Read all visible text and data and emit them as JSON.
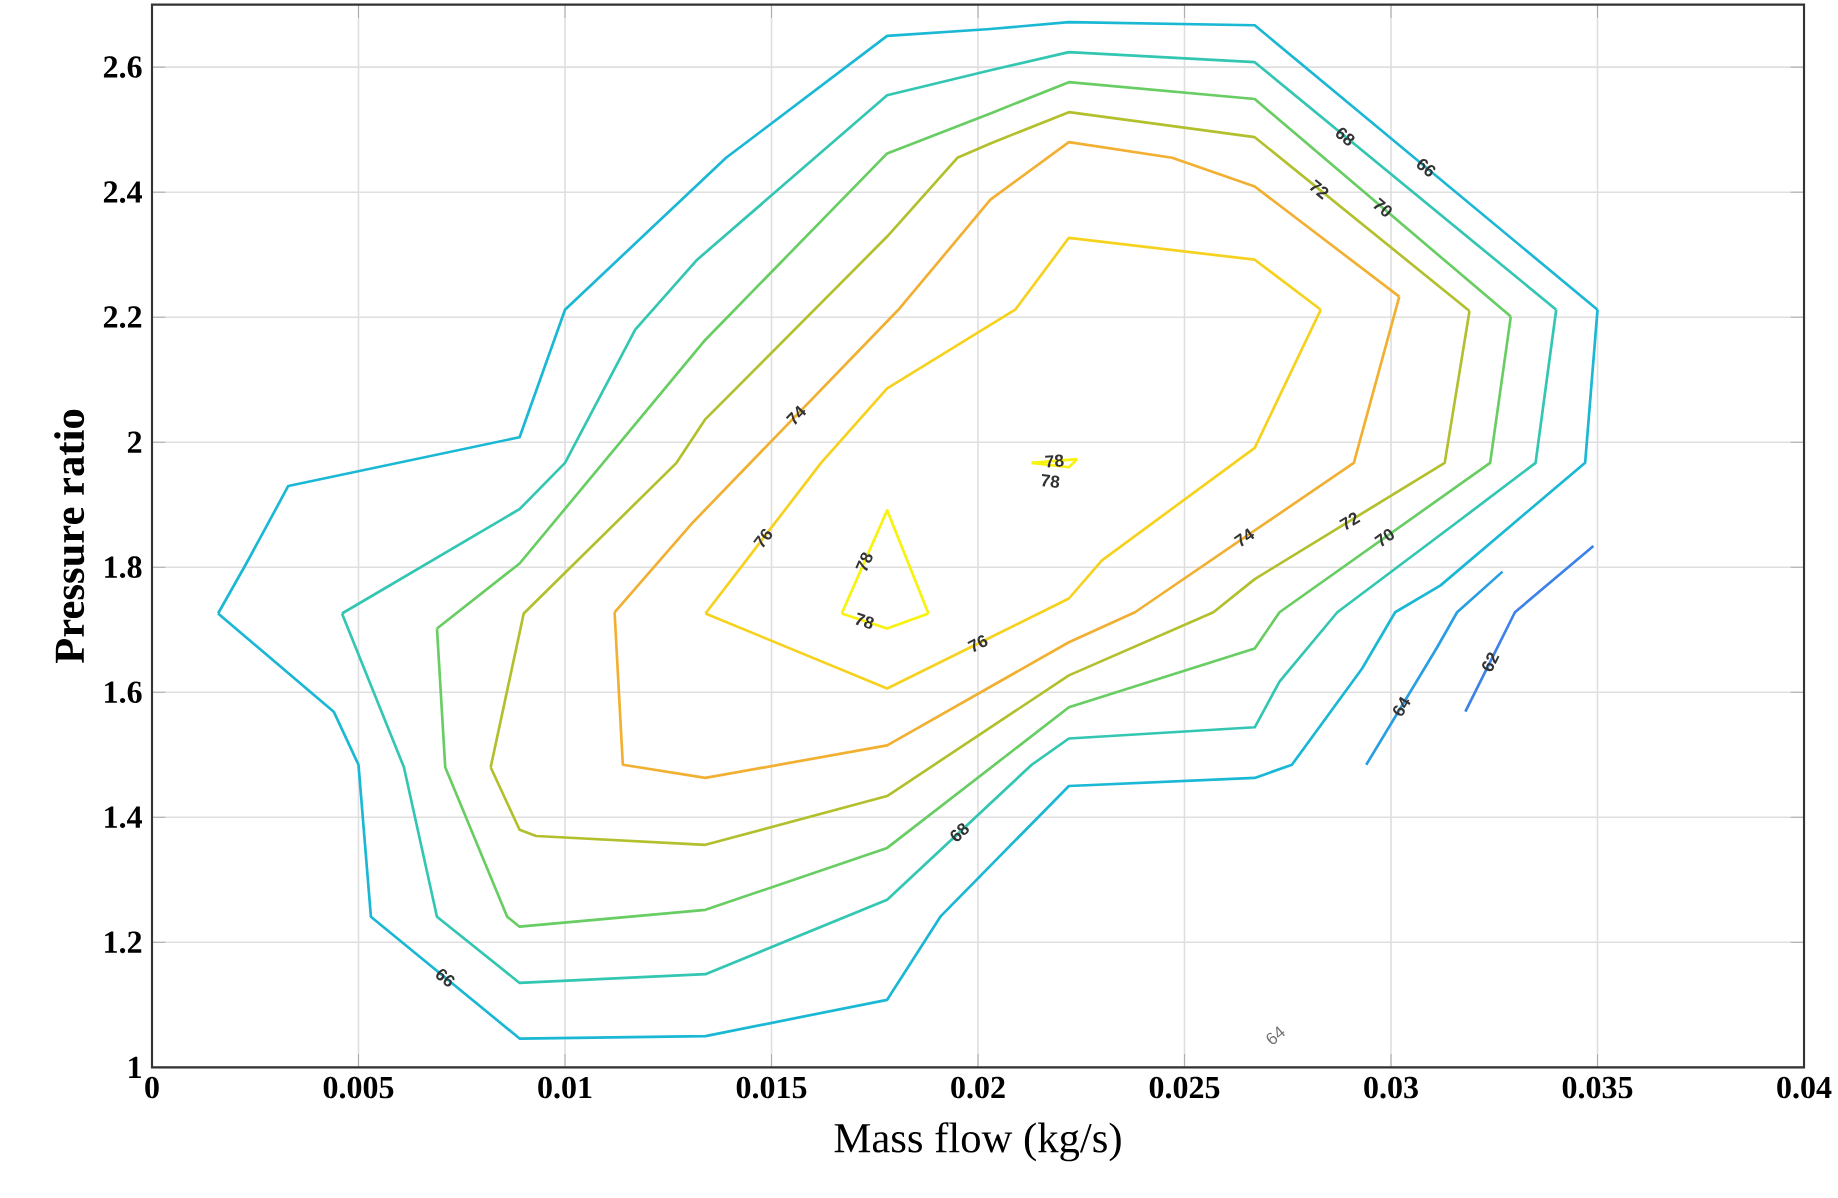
{
  "chart_data": {
    "type": "line",
    "xlabel": "Mass flow (kg/s)",
    "ylabel": "Pressure ratio",
    "xlim": [
      0,
      0.04
    ],
    "ylim": [
      1,
      2.7
    ],
    "xticks": [
      0,
      0.005,
      0.01,
      0.015,
      0.02,
      0.025,
      0.03,
      0.035,
      0.04
    ],
    "yticks": [
      1,
      1.2,
      1.4,
      1.6,
      1.8,
      2,
      2.2,
      2.4,
      2.6
    ],
    "grid": true,
    "marker": "none",
    "line_style": "solid",
    "annotations": [
      "64"
    ],
    "series": [
      {
        "name": "62",
        "color": "#3c82e8",
        "x": [
          0.0318,
          0.033,
          0.0349
        ],
        "values": [
          1.569,
          1.728,
          1.834
        ]
      },
      {
        "name": "64",
        "color": "#2a9ee2",
        "x": [
          0.0294,
          0.0311,
          0.0316,
          0.0327
        ],
        "values": [
          1.484,
          1.67,
          1.728,
          1.793
        ]
      },
      {
        "name": "66",
        "color": "#1ab8d4",
        "x": [
          0.0016,
          0.0023,
          0.0033,
          0.0089,
          0.01,
          0.0139,
          0.0178,
          0.0203,
          0.0222,
          0.0267,
          0.035
        ],
        "values": [
          1.726,
          1.808,
          1.93,
          2.008,
          2.212,
          2.455,
          2.65,
          2.661,
          2.672,
          2.667,
          2.212
        ]
      },
      {
        "name": "66",
        "color": "#1ab8d4",
        "x": [
          0.0016,
          0.0044,
          0.005,
          0.0053,
          0.0089,
          0.0134,
          0.0178,
          0.0191,
          0.0222,
          0.0267,
          0.0276,
          0.0293,
          0.0301,
          0.0312,
          0.033,
          0.0347,
          0.035
        ],
        "values": [
          1.726,
          1.569,
          1.484,
          1.241,
          1.046,
          1.05,
          1.108,
          1.242,
          1.45,
          1.463,
          1.484,
          1.638,
          1.728,
          1.771,
          1.872,
          1.967,
          2.212
        ]
      },
      {
        "name": "68",
        "color": "#33c6b2",
        "x": [
          0.0046,
          0.0089,
          0.01,
          0.0117,
          0.0132,
          0.0178,
          0.0203,
          0.0222,
          0.0267,
          0.034
        ],
        "values": [
          1.726,
          1.893,
          1.967,
          2.18,
          2.292,
          2.555,
          2.595,
          2.624,
          2.608,
          2.212
        ]
      },
      {
        "name": "68",
        "color": "#33c6b2",
        "x": [
          0.0046,
          0.0061,
          0.0069,
          0.0089,
          0.0134,
          0.0178,
          0.0213,
          0.0222,
          0.0267,
          0.0273,
          0.0287,
          0.0316,
          0.0335,
          0.034
        ],
        "values": [
          1.726,
          1.48,
          1.241,
          1.135,
          1.149,
          1.268,
          1.484,
          1.526,
          1.544,
          1.617,
          1.728,
          1.872,
          1.967,
          2.212
        ]
      },
      {
        "name": "70",
        "color": "#68cd62",
        "x": [
          0.0069,
          0.0089,
          0.0134,
          0.0178,
          0.0203,
          0.0222,
          0.0267,
          0.0329
        ],
        "values": [
          1.702,
          1.806,
          2.164,
          2.462,
          2.526,
          2.576,
          2.549,
          2.201
        ]
      },
      {
        "name": "70",
        "color": "#68cd62",
        "x": [
          0.0069,
          0.0071,
          0.0086,
          0.0089,
          0.0134,
          0.0178,
          0.0222,
          0.0267,
          0.0273,
          0.0324,
          0.0329
        ],
        "values": [
          1.702,
          1.48,
          1.241,
          1.225,
          1.252,
          1.351,
          1.576,
          1.67,
          1.728,
          1.967,
          2.201
        ]
      },
      {
        "name": "72",
        "color": "#b2c02e",
        "x": [
          0.0082,
          0.009,
          0.0127,
          0.0134,
          0.0178,
          0.0195,
          0.0203,
          0.0222,
          0.0267,
          0.0319
        ],
        "values": [
          1.48,
          1.726,
          1.967,
          2.037,
          2.329,
          2.455,
          2.478,
          2.528,
          2.488,
          2.21
        ]
      },
      {
        "name": "72",
        "color": "#b2c02e",
        "x": [
          0.0082,
          0.0089,
          0.0093,
          0.0134,
          0.0178,
          0.0222,
          0.0257,
          0.0267,
          0.0313,
          0.0319
        ],
        "values": [
          1.48,
          1.38,
          1.37,
          1.356,
          1.434,
          1.627,
          1.728,
          1.781,
          1.967,
          2.21
        ]
      },
      {
        "name": "74",
        "color": "#f1b032",
        "x": [
          0.0112,
          0.0131,
          0.0181,
          0.0203,
          0.0222,
          0.0247,
          0.0267,
          0.0302
        ],
        "values": [
          1.728,
          1.872,
          2.214,
          2.388,
          2.48,
          2.455,
          2.409,
          2.233
        ]
      },
      {
        "name": "74",
        "color": "#f1b032",
        "x": [
          0.0112,
          0.0114,
          0.0134,
          0.0178,
          0.0222,
          0.0238,
          0.0291,
          0.0302
        ],
        "values": [
          1.728,
          1.484,
          1.463,
          1.515,
          1.68,
          1.728,
          1.967,
          2.233
        ]
      },
      {
        "name": "76",
        "color": "#f6d21e",
        "x": [
          0.0134,
          0.0162,
          0.0178,
          0.0209,
          0.0222,
          0.0267,
          0.0283
        ],
        "values": [
          1.726,
          1.967,
          2.086,
          2.212,
          2.327,
          2.292,
          2.212
        ]
      },
      {
        "name": "76",
        "color": "#f6d21e",
        "x": [
          0.0134,
          0.0178,
          0.0222,
          0.023,
          0.0267,
          0.0283
        ],
        "values": [
          1.726,
          1.606,
          1.75,
          1.811,
          1.991,
          2.212
        ]
      },
      {
        "name": "78",
        "color": "#f8f20e",
        "x": [
          0.0167,
          0.0178,
          0.0188
        ],
        "values": [
          1.726,
          1.891,
          1.726
        ]
      },
      {
        "name": "78",
        "color": "#f8f20e",
        "x": [
          0.0167,
          0.0178,
          0.0188
        ],
        "values": [
          1.726,
          1.702,
          1.726
        ]
      },
      {
        "name": "78",
        "color": "#f8f20e",
        "x": [
          0.0213,
          0.0224
        ],
        "values": [
          1.967,
          1.973
        ]
      },
      {
        "name": "78",
        "color": "#f8f20e",
        "x": [
          0.0213,
          0.0222,
          0.0224
        ],
        "values": [
          1.967,
          1.96,
          1.973
        ]
      }
    ]
  }
}
